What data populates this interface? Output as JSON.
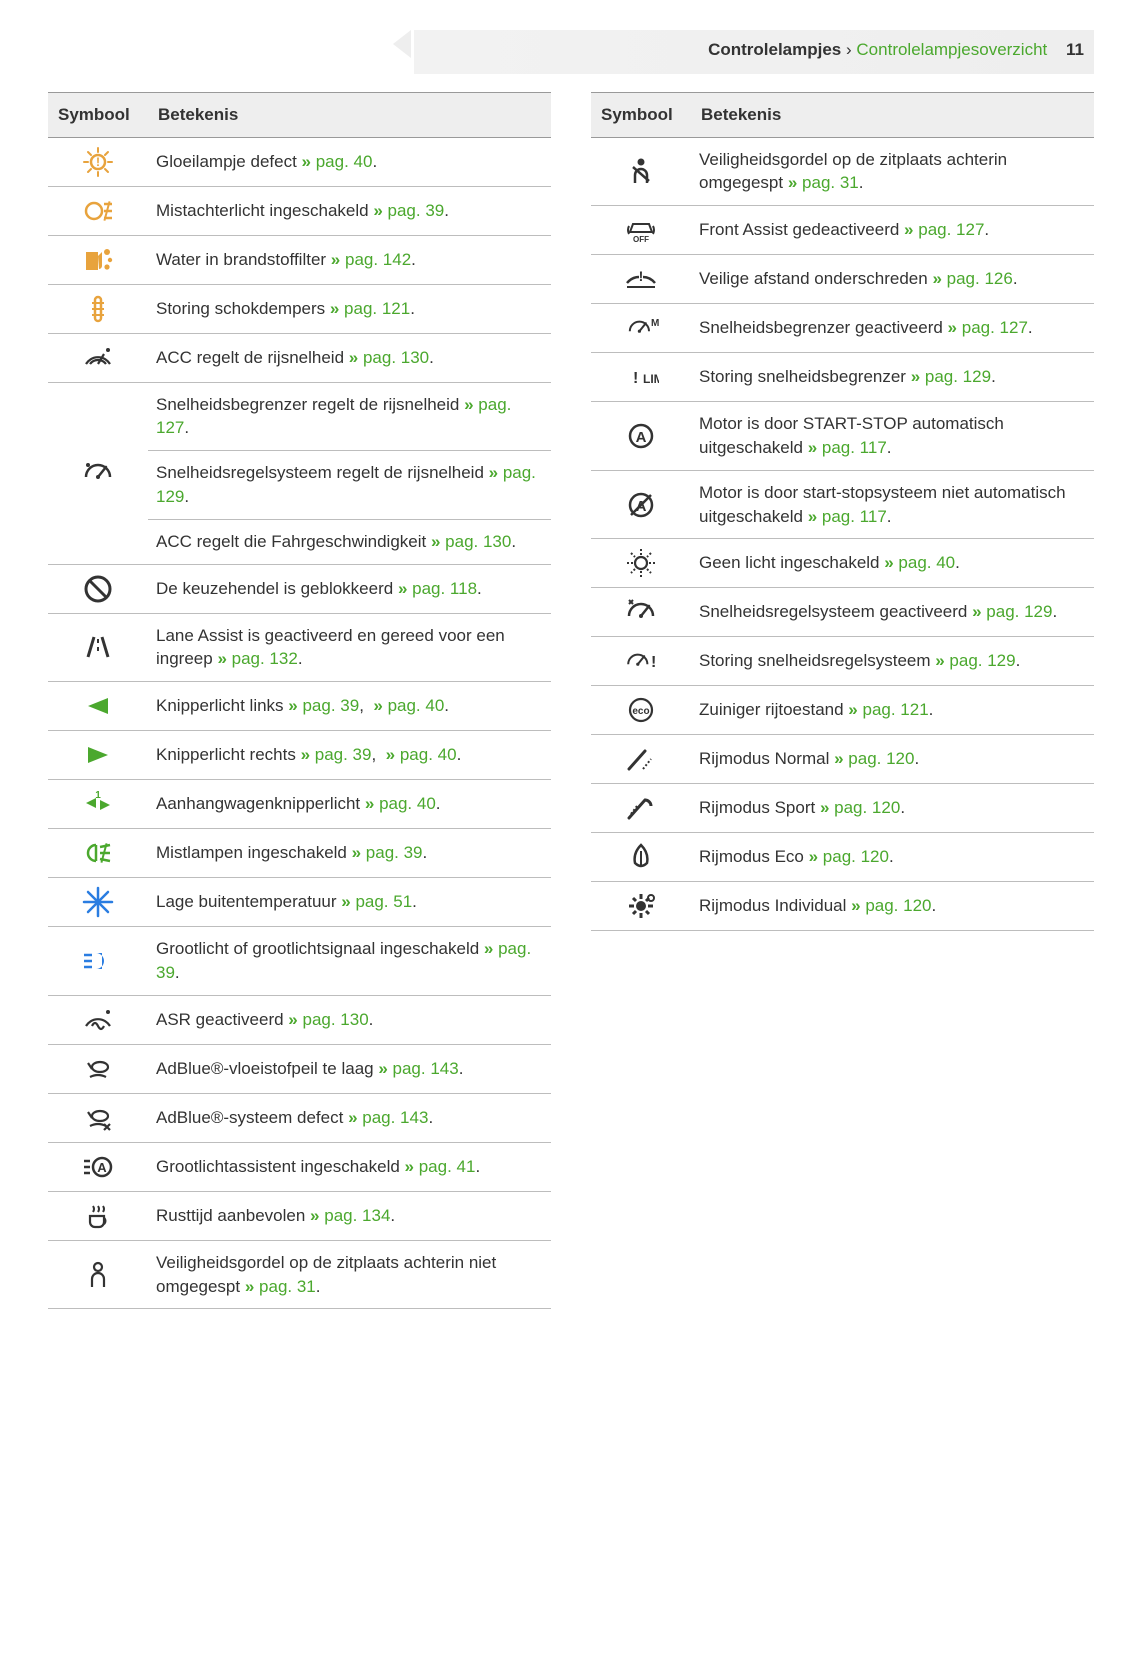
{
  "colors": {
    "link": "#4ba82e",
    "amber": "#e8a33d",
    "blue": "#2a7de1",
    "black": "#333333",
    "headerBg": "#eeeeee",
    "border": "#bdbdbd"
  },
  "header": {
    "chapter": "Controlelampjes",
    "separator": "›",
    "section": "Controlelampjesoverzicht",
    "pageNumber": "11"
  },
  "columns": {
    "leftHeader": {
      "symbol": "Symbool",
      "meaning": "Betekenis"
    },
    "rightHeader": {
      "symbol": "Symbool",
      "meaning": "Betekenis"
    }
  },
  "leftRows": [
    {
      "icon": "bulb-defect",
      "iconColor": "amber",
      "text": "Gloeilampje defect",
      "links": [
        {
          "label": "pag. 40"
        }
      ],
      "rowspan": 1
    },
    {
      "icon": "rear-fog",
      "iconColor": "amber",
      "text": "Mistachterlicht ingeschakeld",
      "links": [
        {
          "label": "pag. 39"
        }
      ],
      "rowspan": 1
    },
    {
      "icon": "water-fuel",
      "iconColor": "amber",
      "text": "Water in brandstoffilter",
      "links": [
        {
          "label": "pag. 142"
        }
      ],
      "rowspan": 1
    },
    {
      "icon": "shock",
      "iconColor": "amber",
      "text": "Storing schokdempers",
      "links": [
        {
          "label": "pag. 121"
        }
      ],
      "rowspan": 1
    },
    {
      "icon": "acc",
      "iconColor": "black",
      "text": "ACC regelt de rijsnelheid",
      "links": [
        {
          "label": "pag. 130"
        }
      ],
      "rowspan": 1
    },
    {
      "icon": "speed-limiter-gauge",
      "iconColor": "black",
      "groupStart": true,
      "rowspan": 3,
      "text": "Snelheidsbegrenzer regelt de rijsnelheid",
      "links": [
        {
          "label": "pag. 127"
        }
      ]
    },
    {
      "groupCont": true,
      "text": "Snelheidsregelsysteem regelt de rijsnelheid",
      "links": [
        {
          "label": "pag. 129"
        }
      ]
    },
    {
      "groupCont": true,
      "text": "ACC regelt die Fahrgeschwindigkeit",
      "links": [
        {
          "label": "pag. 130"
        }
      ]
    },
    {
      "icon": "gear-lock",
      "iconColor": "black",
      "text": "De keuzehendel is geblokkeerd",
      "links": [
        {
          "label": "pag. 118"
        }
      ],
      "rowspan": 1
    },
    {
      "icon": "lane-assist",
      "iconColor": "black",
      "text": "Lane Assist is geactiveerd en gereed voor een ingreep",
      "links": [
        {
          "label": "pag. 132"
        }
      ],
      "rowspan": 1
    },
    {
      "icon": "turn-left",
      "iconColor": "green",
      "text": "Knipperlicht links",
      "links": [
        {
          "label": "pag. 39"
        },
        {
          "label": "pag. 40"
        }
      ],
      "rowspan": 1
    },
    {
      "icon": "turn-right",
      "iconColor": "green",
      "text": "Knipperlicht rechts",
      "links": [
        {
          "label": "pag. 39"
        },
        {
          "label": "pag. 40"
        }
      ],
      "rowspan": 1
    },
    {
      "icon": "trailer-turn",
      "iconColor": "green",
      "text": "Aanhangwagenknipperlicht",
      "links": [
        {
          "label": "pag. 40"
        }
      ],
      "rowspan": 1
    },
    {
      "icon": "fog-front",
      "iconColor": "green",
      "text": "Mistlampen ingeschakeld",
      "links": [
        {
          "label": "pag. 39"
        }
      ],
      "rowspan": 1
    },
    {
      "icon": "snowflake",
      "iconColor": "blue",
      "text": "Lage buitentemperatuur",
      "links": [
        {
          "label": "pag. 51"
        }
      ],
      "rowspan": 1
    },
    {
      "icon": "high-beam",
      "iconColor": "blue",
      "text": "Grootlicht of grootlichtsignaal ingeschakeld",
      "links": [
        {
          "label": "pag. 39"
        }
      ],
      "rowspan": 1
    },
    {
      "icon": "asr",
      "iconColor": "black",
      "text": "ASR geactiveerd",
      "links": [
        {
          "label": "pag. 130"
        }
      ],
      "rowspan": 1
    },
    {
      "icon": "adblue-low",
      "iconColor": "black",
      "text": "AdBlue®-vloeistofpeil te laag",
      "links": [
        {
          "label": "pag. 143"
        }
      ],
      "rowspan": 1
    },
    {
      "icon": "adblue-fault",
      "iconColor": "black",
      "text": "AdBlue®-systeem defect",
      "links": [
        {
          "label": "pag. 143"
        }
      ],
      "rowspan": 1
    },
    {
      "icon": "high-beam-assist",
      "iconColor": "black",
      "text": "Grootlichtassistent ingeschakeld",
      "links": [
        {
          "label": "pag. 41"
        }
      ],
      "rowspan": 1
    },
    {
      "icon": "coffee",
      "iconColor": "black",
      "text": "Rusttijd aanbevolen",
      "links": [
        {
          "label": "pag. 134"
        }
      ],
      "rowspan": 1
    },
    {
      "icon": "seat-passenger",
      "iconColor": "black",
      "text": "Veiligheidsgordel op de zitplaats achterin niet omgegespt",
      "links": [
        {
          "label": "pag. 31"
        }
      ],
      "rowspan": 1
    }
  ],
  "rightRows": [
    {
      "icon": "seatbelt-on",
      "iconColor": "black",
      "text": "Veiligheidsgordel op de zitplaats achterin omgegespt",
      "links": [
        {
          "label": "pag. 31"
        }
      ]
    },
    {
      "icon": "front-assist-off",
      "iconColor": "black",
      "text": "Front Assist gedeactiveerd",
      "links": [
        {
          "label": "pag. 127"
        }
      ]
    },
    {
      "icon": "distance-warning",
      "iconColor": "black",
      "text": "Veilige afstand onderschreden",
      "links": [
        {
          "label": "pag. 126"
        }
      ]
    },
    {
      "icon": "speed-limiter",
      "iconColor": "black",
      "text": "Snelheidsbegrenzer geactiveerd",
      "links": [
        {
          "label": "pag. 127"
        }
      ]
    },
    {
      "icon": "speed-limiter-fault",
      "iconColor": "black",
      "text": "Storing snelheidsbegrenzer",
      "links": [
        {
          "label": "pag. 129"
        }
      ]
    },
    {
      "icon": "start-stop-a",
      "iconColor": "black",
      "text": "Motor is door START-STOP automatisch uitgeschakeld",
      "links": [
        {
          "label": "pag. 117"
        }
      ]
    },
    {
      "icon": "start-stop-off",
      "iconColor": "black",
      "text": "Motor is door start-stopsysteem niet automatisch uitgeschakeld",
      "links": [
        {
          "label": "pag. 117"
        }
      ]
    },
    {
      "icon": "no-light",
      "iconColor": "black",
      "text": "Geen licht ingeschakeld",
      "links": [
        {
          "label": "pag. 40"
        }
      ]
    },
    {
      "icon": "cruise-active",
      "iconColor": "black",
      "text": "Snelheidsregelsysteem geactiveerd",
      "links": [
        {
          "label": "pag. 129"
        }
      ]
    },
    {
      "icon": "cruise-fault",
      "iconColor": "black",
      "text": "Storing snelheidsregelsysteem",
      "links": [
        {
          "label": "pag. 129"
        }
      ]
    },
    {
      "icon": "eco-state",
      "iconColor": "black",
      "text": "Zuiniger rijtoestand",
      "links": [
        {
          "label": "pag. 121"
        }
      ]
    },
    {
      "icon": "mode-normal",
      "iconColor": "black",
      "text": "Rijmodus Normal",
      "links": [
        {
          "label": "pag. 120"
        }
      ]
    },
    {
      "icon": "mode-sport",
      "iconColor": "black",
      "text": "Rijmodus Sport",
      "links": [
        {
          "label": "pag. 120"
        }
      ]
    },
    {
      "icon": "mode-eco",
      "iconColor": "black",
      "text": "Rijmodus Eco",
      "links": [
        {
          "label": "pag. 120"
        }
      ]
    },
    {
      "icon": "mode-individual",
      "iconColor": "black",
      "text": "Rijmodus Individual",
      "links": [
        {
          "label": "pag. 120"
        }
      ]
    }
  ]
}
